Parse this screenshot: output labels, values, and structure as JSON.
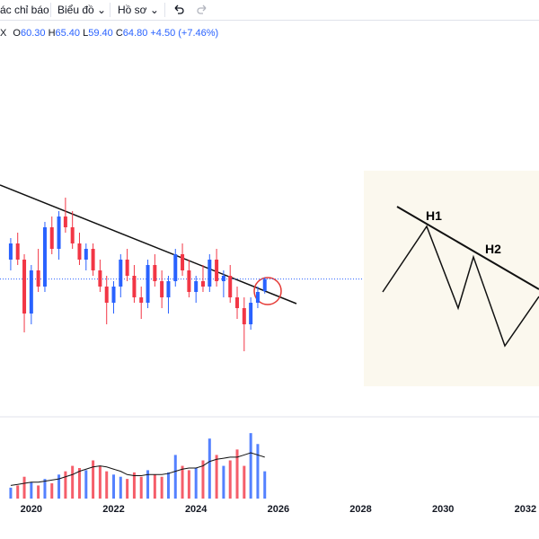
{
  "toolbar": {
    "items": [
      "ác chỉ báo",
      "Biểu đồ",
      "Hồ sơ"
    ]
  },
  "legend": {
    "symbol": "X",
    "o_label": "O",
    "open": "60.30",
    "h_label": "H",
    "high": "65.40",
    "l_label": "L",
    "low": "59.40",
    "c_label": "C",
    "close": "64.80",
    "change": "+4.50 (+7.46%)"
  },
  "chart_data": {
    "type": "candlestick",
    "x": [
      2019.5,
      2019.67,
      2019.83,
      2020.0,
      2020.17,
      2020.33,
      2020.5,
      2020.67,
      2020.83,
      2021.0,
      2021.17,
      2021.33,
      2021.5,
      2021.67,
      2021.83,
      2022.0,
      2022.17,
      2022.33,
      2022.5,
      2022.67,
      2022.83,
      2023.0,
      2023.17,
      2023.33,
      2023.5,
      2023.67,
      2023.83,
      2024.0,
      2024.17,
      2024.33,
      2024.5,
      2024.67,
      2024.83,
      2025.0,
      2025.17,
      2025.33,
      2025.5,
      2025.67
    ],
    "open": [
      72,
      78,
      72,
      52,
      68,
      62,
      84,
      76,
      88,
      84,
      78,
      72,
      76,
      68,
      62,
      56,
      62,
      72,
      66,
      58,
      56,
      70,
      64,
      58,
      64,
      74,
      68,
      60,
      64,
      62,
      72,
      64,
      66,
      58,
      54,
      48,
      56,
      60.3
    ],
    "high": [
      80,
      82,
      74,
      70,
      76,
      86,
      88,
      90,
      95,
      90,
      82,
      78,
      78,
      72,
      66,
      64,
      74,
      76,
      70,
      62,
      72,
      74,
      68,
      66,
      76,
      78,
      72,
      66,
      70,
      74,
      76,
      68,
      70,
      62,
      58,
      58,
      62,
      65.4
    ],
    "low": [
      68,
      70,
      45,
      48,
      60,
      60,
      74,
      72,
      82,
      76,
      70,
      68,
      66,
      60,
      48,
      52,
      58,
      64,
      56,
      50,
      54,
      62,
      54,
      52,
      62,
      66,
      58,
      56,
      60,
      60,
      62,
      58,
      56,
      50,
      38,
      46,
      54,
      59.4
    ],
    "close": [
      78,
      72,
      52,
      68,
      62,
      84,
      76,
      88,
      84,
      78,
      72,
      76,
      68,
      62,
      56,
      62,
      72,
      66,
      58,
      56,
      70,
      64,
      58,
      64,
      74,
      68,
      60,
      64,
      62,
      72,
      64,
      66,
      58,
      54,
      48,
      56,
      60,
      64.8
    ],
    "volume": [
      10,
      12,
      20,
      15,
      12,
      18,
      14,
      22,
      25,
      30,
      28,
      26,
      35,
      30,
      25,
      22,
      20,
      18,
      24,
      20,
      26,
      22,
      20,
      24,
      40,
      30,
      26,
      28,
      35,
      55,
      40,
      30,
      35,
      45,
      30,
      60,
      50,
      25
    ],
    "volume_ma": [
      12,
      13,
      14,
      15,
      15,
      16,
      17,
      18,
      20,
      22,
      25,
      27,
      29,
      30,
      29,
      27,
      25,
      22,
      21,
      21,
      22,
      22,
      22,
      23,
      25,
      27,
      28,
      28,
      30,
      34,
      36,
      37,
      38,
      38,
      40,
      42,
      40,
      38
    ],
    "up_color": "#2962ff",
    "down_color": "#f23645",
    "ylim": [
      15,
      155
    ],
    "vlim": [
      0,
      70
    ],
    "xlim": [
      2019.24,
      2032.33
    ],
    "xticks": [
      2020,
      2022,
      2024,
      2026,
      2028,
      2030,
      2032
    ]
  },
  "pattern": {
    "labels": [
      "H1",
      "H2"
    ]
  }
}
